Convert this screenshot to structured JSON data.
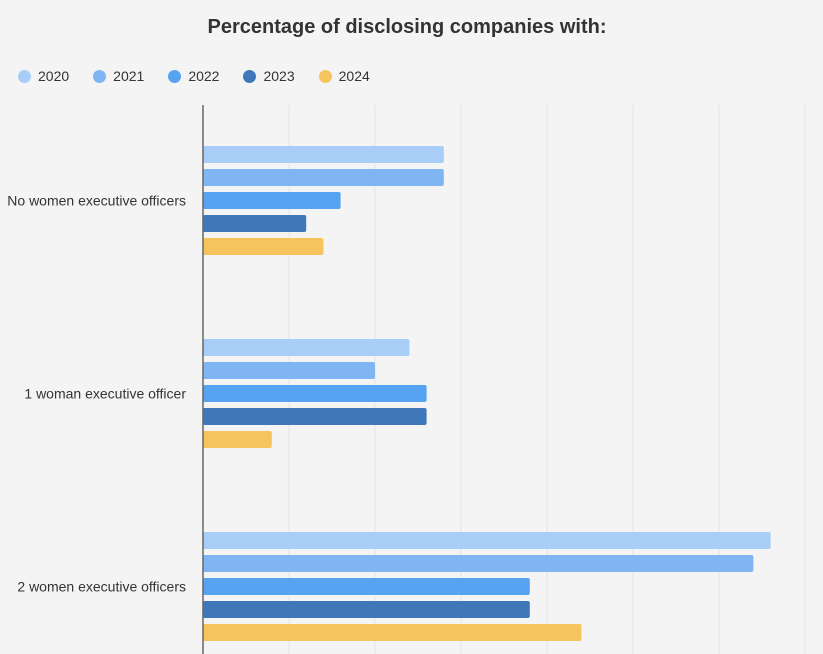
{
  "chart_data": {
    "type": "bar",
    "orientation": "horizontal",
    "title": "Percentage of disclosing companies with:",
    "categories": [
      "No women executive officers",
      "1 woman executive officer",
      "2 women executive officers"
    ],
    "series": [
      {
        "name": "2020",
        "color": "#a8cdf7",
        "values": [
          28,
          24,
          66
        ]
      },
      {
        "name": "2021",
        "color": "#7fb5f3",
        "values": [
          28,
          20,
          64
        ]
      },
      {
        "name": "2022",
        "color": "#55a3f1",
        "values": [
          16,
          26,
          38
        ]
      },
      {
        "name": "2023",
        "color": "#3e78b9",
        "values": [
          12,
          26,
          38
        ]
      },
      {
        "name": "2024",
        "color": "#f5c45c",
        "values": [
          14,
          8,
          44
        ]
      }
    ],
    "xlim": [
      0,
      70
    ],
    "xtick_step": 10,
    "grid": true,
    "xlabel": "",
    "ylabel": "",
    "legend_position": "top-left"
  }
}
